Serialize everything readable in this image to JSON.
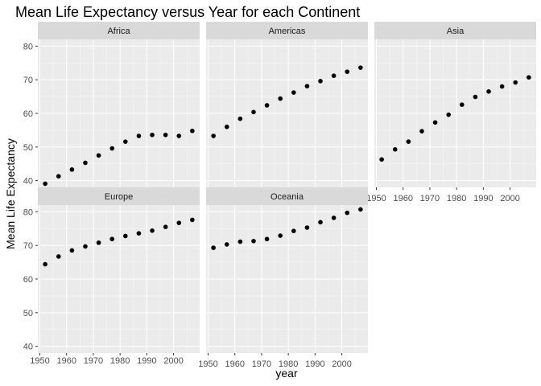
{
  "chart_data": {
    "type": "scatter",
    "title": "Mean Life Expectancy versus Year for each Continent",
    "xlabel": "year",
    "ylabel": "Mean Life Expectancy",
    "xlim": [
      1949.25,
      2009.75
    ],
    "ylim": [
      38,
      82
    ],
    "x_ticks": [
      1950,
      1960,
      1970,
      1980,
      1990,
      2000
    ],
    "y_ticks": [
      40,
      50,
      60,
      70,
      80
    ],
    "grid": true,
    "x": [
      1952,
      1957,
      1962,
      1967,
      1972,
      1977,
      1982,
      1987,
      1992,
      1997,
      2002,
      2007
    ],
    "series": [
      {
        "name": "Africa",
        "values": [
          39.1,
          41.3,
          43.3,
          45.3,
          47.5,
          49.6,
          51.6,
          53.3,
          53.6,
          53.6,
          53.3,
          54.8
        ]
      },
      {
        "name": "Americas",
        "values": [
          53.3,
          56.0,
          58.4,
          60.4,
          62.4,
          64.4,
          66.2,
          68.1,
          69.6,
          71.2,
          72.4,
          73.6
        ]
      },
      {
        "name": "Asia",
        "values": [
          46.3,
          49.3,
          51.6,
          54.7,
          57.3,
          59.6,
          62.6,
          64.9,
          66.5,
          68.0,
          69.2,
          70.7
        ]
      },
      {
        "name": "Europe",
        "values": [
          64.4,
          66.7,
          68.5,
          69.7,
          70.8,
          71.9,
          72.8,
          73.6,
          74.4,
          75.5,
          76.7,
          77.6
        ]
      },
      {
        "name": "Oceania",
        "values": [
          69.3,
          70.3,
          71.1,
          71.3,
          71.9,
          72.9,
          74.3,
          75.3,
          76.9,
          78.2,
          79.7,
          80.7
        ]
      }
    ]
  }
}
